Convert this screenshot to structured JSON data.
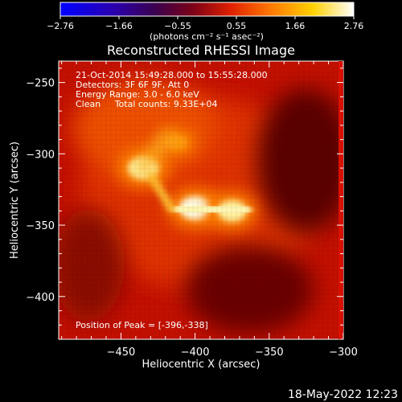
{
  "colorbar": {
    "ticks": [
      "−2.76",
      "−1.66",
      "−0.55",
      "0.55",
      "1.66",
      "2.76"
    ],
    "unit_label": "(photons cm⁻² s⁻¹ asec⁻²)"
  },
  "title": "Reconstructed RHESSI Image",
  "annotations": {
    "time": "21-Oct-2014 15:49:28.000 to 15:55:28.000",
    "detectors": "Detectors: 3F 6F 9F, Att 0",
    "energy": "Energy Range: 3.0 - 6.0 keV",
    "clean": "Clean     Total counts: 9.33E+04",
    "peak": "Position of Peak = [-396,-338]"
  },
  "footer_timestamp": "18-May-2022 12:23",
  "chart_data": {
    "type": "heatmap",
    "title": "Reconstructed RHESSI Image",
    "xlabel": "Heliocentric X (arcsec)",
    "ylabel": "Heliocentric Y (arcsec)",
    "xlim": [
      -492,
      -300
    ],
    "ylim": [
      -430,
      -235
    ],
    "xticks": [
      -450,
      -400,
      -350,
      -300
    ],
    "yticks": [
      -250,
      -300,
      -350,
      -400
    ],
    "colorbar_range": [
      -2.76,
      2.76
    ],
    "colormap": "red-temperature (black-blue-purple-red-orange-yellow-white)",
    "peak_position": [
      -396,
      -338
    ],
    "sources": [
      {
        "x": -435,
        "y": -310,
        "intensity": 2.6
      },
      {
        "x": -400,
        "y": -338,
        "intensity": 2.76
      },
      {
        "x": -375,
        "y": -340,
        "intensity": 2.4
      },
      {
        "x": -412,
        "y": -292,
        "intensity": 1.3
      }
    ]
  }
}
